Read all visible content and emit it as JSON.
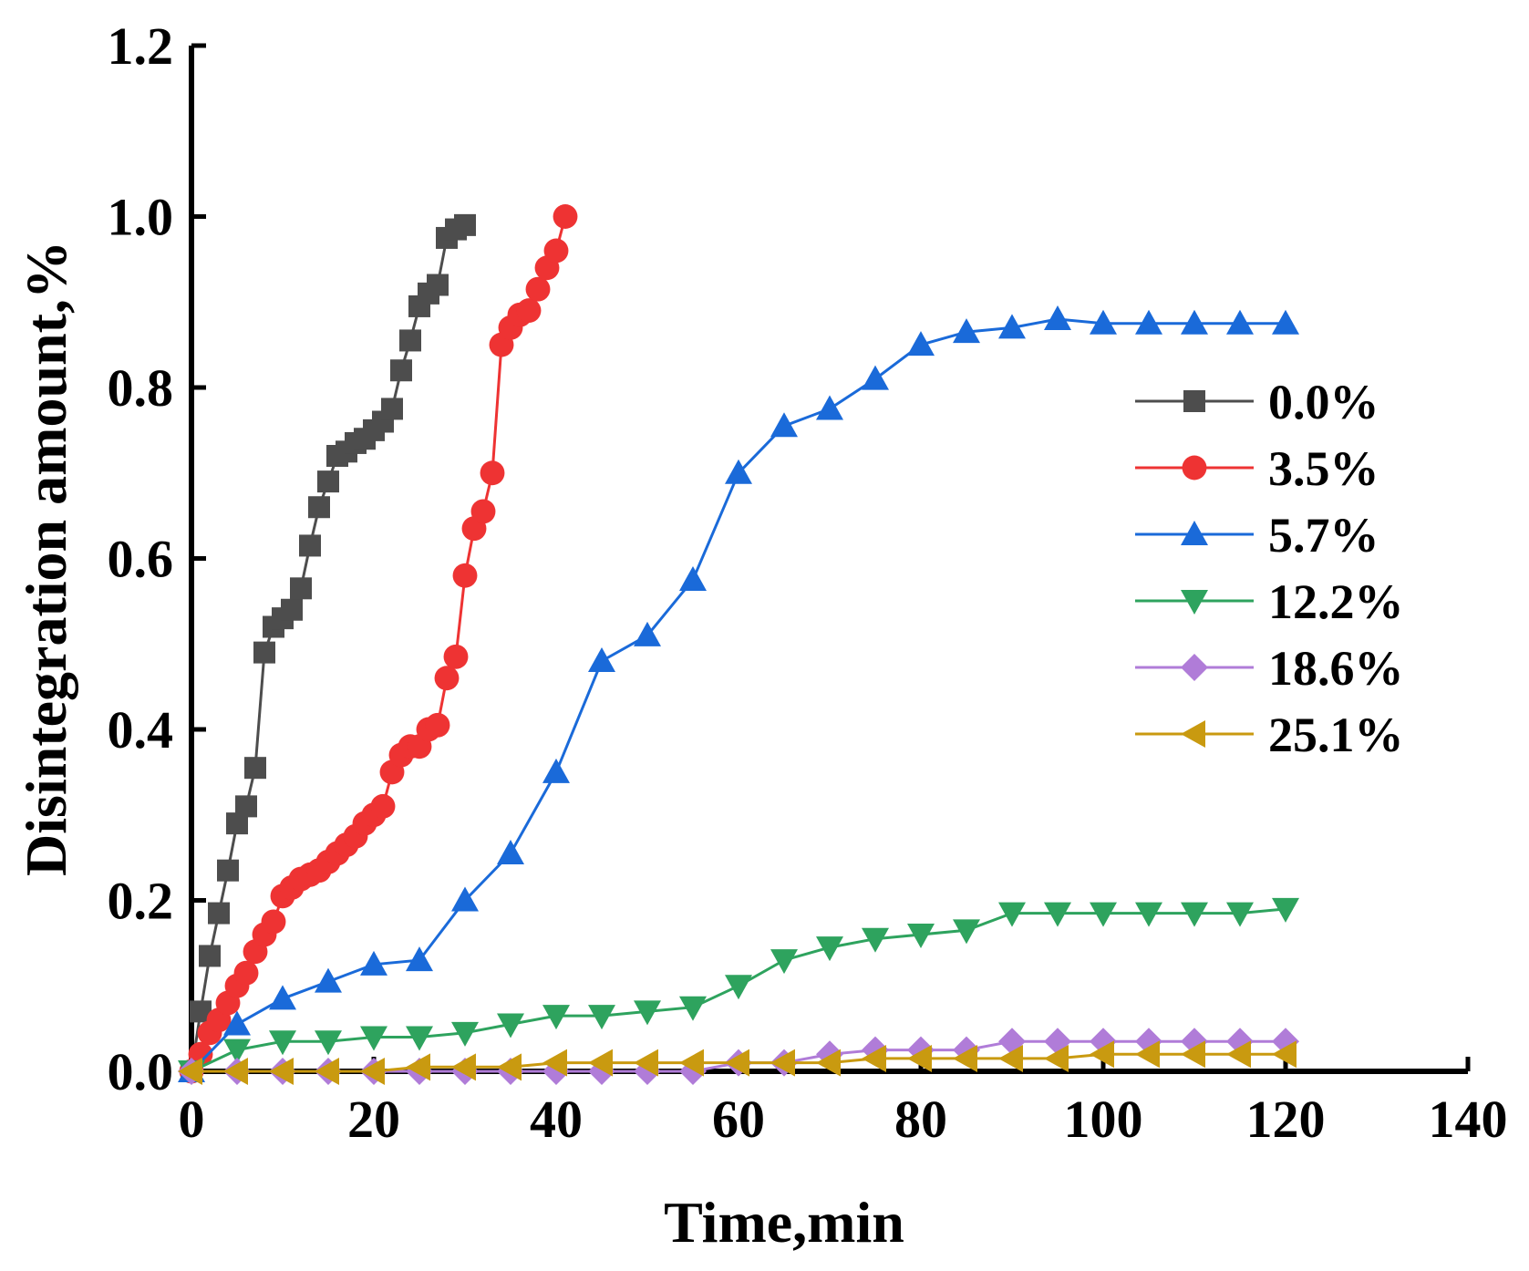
{
  "chart_data": {
    "type": "line",
    "title": "",
    "xlabel": "Time,min",
    "ylabel": "Disintegration amount,%",
    "xlim": [
      0,
      140
    ],
    "ylim": [
      0,
      1.2
    ],
    "xticks": [
      0,
      20,
      40,
      60,
      80,
      100,
      120,
      140
    ],
    "yticks": [
      0.0,
      0.2,
      0.4,
      0.6,
      0.8,
      1.0,
      1.2
    ],
    "xtick_labels": [
      "0",
      "20",
      "40",
      "60",
      "80",
      "100",
      "120",
      "140"
    ],
    "ytick_labels": [
      "0.0",
      "0.2",
      "0.4",
      "0.6",
      "0.8",
      "1.0",
      "1.2"
    ],
    "grid": false,
    "legend_position": "right",
    "series": [
      {
        "name": "0.0%",
        "color": "#4d4d4d",
        "marker": "square",
        "x": [
          0,
          1,
          2,
          3,
          4,
          5,
          6,
          7,
          8,
          9,
          10,
          11,
          12,
          13,
          14,
          15,
          16,
          17,
          18,
          19,
          20,
          21,
          22,
          23,
          24,
          25,
          26,
          27,
          28,
          29,
          30
        ],
        "y": [
          0.0,
          0.07,
          0.135,
          0.185,
          0.235,
          0.29,
          0.31,
          0.355,
          0.49,
          0.52,
          0.53,
          0.54,
          0.565,
          0.615,
          0.66,
          0.69,
          0.72,
          0.725,
          0.735,
          0.74,
          0.75,
          0.76,
          0.775,
          0.82,
          0.855,
          0.895,
          0.91,
          0.92,
          0.975,
          0.985,
          0.99
        ]
      },
      {
        "name": "3.5%",
        "color": "#ee3333",
        "marker": "circle",
        "x": [
          0,
          1,
          2,
          3,
          4,
          5,
          6,
          7,
          8,
          9,
          10,
          11,
          12,
          13,
          14,
          15,
          16,
          17,
          18,
          19,
          20,
          21,
          22,
          23,
          24,
          25,
          26,
          27,
          28,
          29,
          30,
          31,
          32,
          33,
          34,
          35,
          36,
          37,
          38,
          39,
          40,
          41
        ],
        "y": [
          0.0,
          0.02,
          0.045,
          0.06,
          0.08,
          0.1,
          0.115,
          0.14,
          0.16,
          0.175,
          0.205,
          0.215,
          0.225,
          0.23,
          0.235,
          0.245,
          0.255,
          0.265,
          0.275,
          0.29,
          0.3,
          0.31,
          0.35,
          0.37,
          0.38,
          0.38,
          0.4,
          0.405,
          0.46,
          0.485,
          0.58,
          0.635,
          0.655,
          0.7,
          0.85,
          0.87,
          0.885,
          0.89,
          0.915,
          0.94,
          0.96,
          1.0
        ]
      },
      {
        "name": "5.7%",
        "color": "#1a6ad9",
        "marker": "triangle-up",
        "x": [
          0,
          5,
          10,
          15,
          20,
          25,
          30,
          35,
          40,
          45,
          50,
          55,
          60,
          65,
          70,
          75,
          80,
          85,
          90,
          95,
          100,
          105,
          110,
          115,
          120
        ],
        "y": [
          0.0,
          0.055,
          0.085,
          0.105,
          0.125,
          0.13,
          0.2,
          0.255,
          0.35,
          0.48,
          0.51,
          0.575,
          0.7,
          0.755,
          0.775,
          0.81,
          0.85,
          0.865,
          0.87,
          0.88,
          0.875,
          0.875,
          0.875,
          0.875,
          0.875
        ]
      },
      {
        "name": "12.2%",
        "color": "#2ea35e",
        "marker": "triangle-down",
        "x": [
          0,
          5,
          10,
          15,
          20,
          25,
          30,
          35,
          40,
          45,
          50,
          55,
          60,
          65,
          70,
          75,
          80,
          85,
          90,
          95,
          100,
          105,
          110,
          115,
          120
        ],
        "y": [
          0.0,
          0.025,
          0.035,
          0.035,
          0.04,
          0.04,
          0.045,
          0.055,
          0.065,
          0.065,
          0.07,
          0.075,
          0.1,
          0.13,
          0.145,
          0.155,
          0.16,
          0.165,
          0.185,
          0.185,
          0.185,
          0.185,
          0.185,
          0.185,
          0.19
        ]
      },
      {
        "name": "18.6%",
        "color": "#b07cd8",
        "marker": "diamond",
        "x": [
          0,
          5,
          10,
          15,
          20,
          25,
          30,
          35,
          40,
          45,
          50,
          55,
          60,
          65,
          70,
          75,
          80,
          85,
          90,
          95,
          100,
          105,
          110,
          115,
          120
        ],
        "y": [
          0.0,
          0.0,
          0.0,
          0.0,
          0.0,
          0.0,
          0.0,
          0.0,
          0.0,
          0.0,
          0.0,
          0.0,
          0.01,
          0.01,
          0.02,
          0.025,
          0.025,
          0.025,
          0.035,
          0.035,
          0.035,
          0.035,
          0.035,
          0.035,
          0.035
        ]
      },
      {
        "name": "25.1%",
        "color": "#c99a10",
        "marker": "triangle-left",
        "x": [
          0,
          5,
          10,
          15,
          20,
          25,
          30,
          35,
          40,
          45,
          50,
          55,
          60,
          65,
          70,
          75,
          80,
          85,
          90,
          95,
          100,
          105,
          110,
          115,
          120
        ],
        "y": [
          0.0,
          0.0,
          0.0,
          0.0,
          0.0,
          0.005,
          0.005,
          0.005,
          0.01,
          0.01,
          0.01,
          0.01,
          0.01,
          0.01,
          0.01,
          0.015,
          0.015,
          0.015,
          0.015,
          0.015,
          0.02,
          0.02,
          0.02,
          0.02,
          0.02
        ]
      }
    ]
  }
}
